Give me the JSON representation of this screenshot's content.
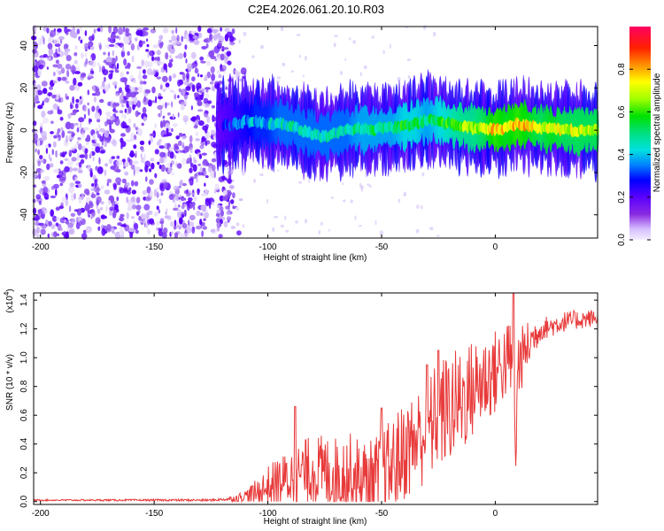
{
  "figure_title": "C2E4.2026.061.20.10.R03",
  "chart_data": [
    {
      "type": "heatmap",
      "name": "spectrogram",
      "xlabel": "Height of straight line (km)",
      "ylabel": "Frequency (Hz)",
      "xlim": [
        -203,
        45
      ],
      "ylim": [
        -51,
        49
      ],
      "xticks": [
        -200,
        -150,
        -100,
        -50,
        0
      ],
      "yticks": [
        -40,
        -20,
        0,
        20,
        40
      ],
      "description_track": {
        "x": [
          -122,
          -115,
          -110,
          -105,
          -100,
          -95,
          -90,
          -85,
          -80,
          -75,
          -70,
          -65,
          -60,
          -55,
          -50,
          -45,
          -40,
          -35,
          -30,
          -25,
          -20,
          -15,
          -10,
          -5,
          0,
          5,
          10,
          15,
          20,
          25,
          30,
          35,
          40,
          45
        ],
        "freq": [
          2,
          3,
          4,
          4,
          3,
          3,
          2,
          0,
          -2,
          -3,
          -1,
          0,
          1,
          0,
          1,
          1,
          2,
          3,
          5,
          4,
          3,
          2,
          1,
          1,
          0,
          1,
          3,
          2,
          1,
          1,
          0,
          0,
          0,
          0
        ],
        "amplitude": [
          0.25,
          0.3,
          0.35,
          0.4,
          0.4,
          0.45,
          0.45,
          0.45,
          0.45,
          0.45,
          0.45,
          0.45,
          0.5,
          0.5,
          0.5,
          0.5,
          0.55,
          0.55,
          0.5,
          0.55,
          0.6,
          0.65,
          0.65,
          0.7,
          0.8,
          0.75,
          0.8,
          0.75,
          0.7,
          0.75,
          0.7,
          0.7,
          0.7,
          0.7
        ]
      },
      "noise_region_x": [
        -203,
        -115
      ]
    },
    {
      "type": "colorbar",
      "name": "colorbar",
      "label": "Normalized spectral amplitude",
      "range": [
        0,
        1
      ],
      "ticks": [
        0.0,
        0.2,
        0.4,
        0.6,
        0.8
      ],
      "tick_labels": [
        "0.0",
        "0.2",
        "0.4",
        "0.6",
        "0.8"
      ]
    },
    {
      "type": "line",
      "name": "snr",
      "xlabel": "Height of straight line (km)",
      "ylabel": "SNR (10 * v/v)",
      "y_multiplier": "(x10",
      "y_multiplier_exp": "4",
      "xlim": [
        -203,
        45
      ],
      "ylim": [
        -0.02,
        1.45
      ],
      "xticks": [
        -200,
        -150,
        -100,
        -50,
        0
      ],
      "yticks": [
        0.0,
        0.2,
        0.4,
        0.6,
        0.8,
        1.0,
        1.2,
        1.4
      ],
      "ytick_labels": [
        "0.0",
        "0.2",
        "0.4",
        "0.6",
        "0.8",
        "1.0",
        "1.2",
        "1.4"
      ],
      "color": "#e83a3a",
      "baseline_x": [
        -203,
        -150,
        -125,
        -115,
        -110,
        -105,
        -100,
        -95,
        -90,
        -85,
        -80,
        -75,
        -70,
        -65,
        -60,
        -55,
        -50,
        -45,
        -40,
        -35,
        -30,
        -25,
        -20,
        -15,
        -10,
        -5,
        0,
        3,
        5,
        7,
        8,
        9,
        10,
        15,
        20,
        25,
        30,
        35,
        40,
        45
      ],
      "baseline_y": [
        0.01,
        0.01,
        0.01,
        0.02,
        0.04,
        0.06,
        0.1,
        0.14,
        0.16,
        0.2,
        0.22,
        0.2,
        0.18,
        0.2,
        0.15,
        0.12,
        0.18,
        0.25,
        0.35,
        0.42,
        0.5,
        0.6,
        0.65,
        0.7,
        0.78,
        0.85,
        0.9,
        0.95,
        0.98,
        1.0,
        0.6,
        0.35,
        0.95,
        1.1,
        1.2,
        1.22,
        1.25,
        1.26,
        1.27,
        1.28
      ],
      "noise_amp_x": [
        -203,
        -120,
        -110,
        -100,
        -80,
        -60,
        -40,
        -20,
        0,
        10,
        20,
        45
      ],
      "noise_amp_y": [
        0.005,
        0.008,
        0.04,
        0.15,
        0.25,
        0.3,
        0.35,
        0.4,
        0.3,
        0.25,
        0.08,
        0.06
      ],
      "peaks": [
        {
          "x": -88,
          "y": 0.66
        },
        {
          "x": -50,
          "y": 0.65
        },
        {
          "x": -30,
          "y": 0.95
        },
        {
          "x": -25,
          "y": 1.05
        },
        {
          "x": 8,
          "y": 1.45
        }
      ]
    }
  ]
}
